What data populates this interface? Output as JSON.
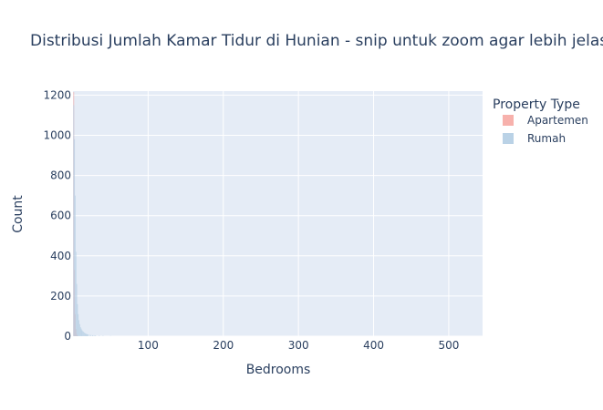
{
  "chart_data": {
    "type": "bar",
    "title": "Distribusi Jumlah Kamar Tidur di Hunian - snip untuk zoom agar lebih jelas",
    "xlabel": "Bedrooms",
    "ylabel": "Count",
    "xlim": [
      0,
      545
    ],
    "ylim": [
      0,
      1220
    ],
    "x_ticks": [
      100,
      200,
      300,
      400,
      500
    ],
    "y_ticks": [
      0,
      200,
      400,
      600,
      800,
      1000,
      1200
    ],
    "barmode": "overlay",
    "grid": true,
    "legend_title": "Property Type",
    "legend_position": "top-right",
    "series": [
      {
        "name": "Apartemen",
        "color": "#F6A9A3",
        "x": [
          1,
          2,
          3,
          4,
          5,
          6
        ],
        "values": [
          1215,
          330,
          110,
          35,
          12,
          4
        ]
      },
      {
        "name": "Rumah",
        "color": "#B3CDE3",
        "x": [
          1,
          2,
          3,
          4,
          5,
          6,
          7,
          8,
          9,
          10,
          11,
          12,
          13,
          14,
          15,
          16,
          17,
          18,
          19,
          20,
          22,
          24,
          26,
          28,
          30,
          35,
          40,
          50
        ],
        "values": [
          1150,
          980,
          700,
          420,
          260,
          160,
          110,
          80,
          60,
          45,
          38,
          30,
          25,
          22,
          18,
          15,
          13,
          11,
          10,
          9,
          7,
          6,
          5,
          5,
          4,
          3,
          2,
          1
        ]
      }
    ]
  }
}
